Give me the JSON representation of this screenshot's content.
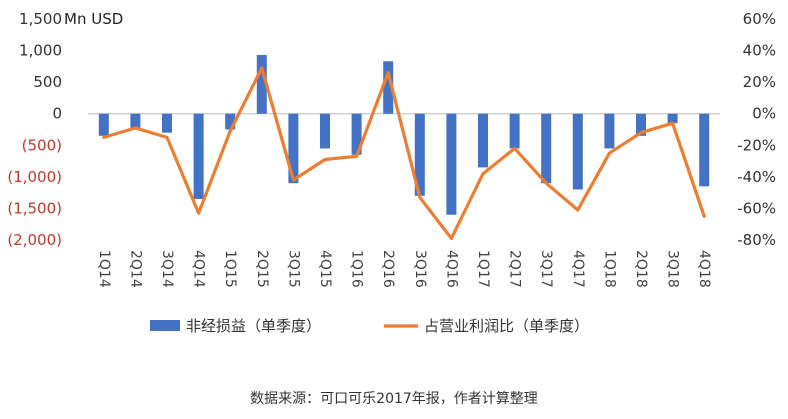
{
  "chart_data": {
    "type": "bar+line",
    "unit_label": "Mn USD",
    "categories": [
      "1Q14",
      "2Q14",
      "3Q14",
      "4Q14",
      "1Q15",
      "2Q15",
      "3Q15",
      "4Q15",
      "1Q16",
      "2Q16",
      "3Q16",
      "4Q16",
      "1Q17",
      "2Q17",
      "3Q17",
      "4Q17",
      "1Q18",
      "2Q18",
      "3Q18",
      "4Q18"
    ],
    "left_axis": {
      "ticks": [
        1500,
        1000,
        500,
        0,
        -500,
        -1000,
        -1500,
        -2000
      ],
      "tick_labels": [
        "1,500",
        "1,000",
        "500",
        "0",
        "(500)",
        "(1,000)",
        "(1,500)",
        "(2,000)"
      ],
      "ylim": [
        -2000,
        1500
      ]
    },
    "right_axis": {
      "ticks": [
        60,
        40,
        20,
        0,
        -20,
        -40,
        -60,
        -80
      ],
      "tick_labels": [
        "60%",
        "40%",
        "20%",
        "0%",
        "-20%",
        "-40%",
        "-60%",
        "-80%"
      ],
      "ylim": [
        -80,
        60
      ]
    },
    "series": [
      {
        "name": "非经损益（单季度）",
        "type": "bar",
        "axis": "left",
        "color": "#4472C4",
        "values": [
          -350,
          -250,
          -300,
          -1350,
          -250,
          930,
          -1100,
          -550,
          -650,
          830,
          -1300,
          -1600,
          -850,
          -550,
          -1100,
          -1200,
          -550,
          -350,
          -150,
          -1150
        ]
      },
      {
        "name": "占营业利润比（单季度）",
        "type": "line",
        "axis": "right",
        "color": "#ED7D31",
        "values": [
          -15,
          -9,
          -15,
          -63,
          -11,
          29,
          -42,
          -29,
          -27,
          26,
          -53,
          -79,
          -38,
          -22,
          -44,
          -61,
          -25,
          -12,
          -6,
          -65
        ]
      }
    ]
  },
  "caption": "数据来源：可口可乐2017年报，作者计算整理",
  "colors": {
    "bar": "#4472C4",
    "line": "#ED7D31",
    "negative_tick": "#C0392B"
  }
}
